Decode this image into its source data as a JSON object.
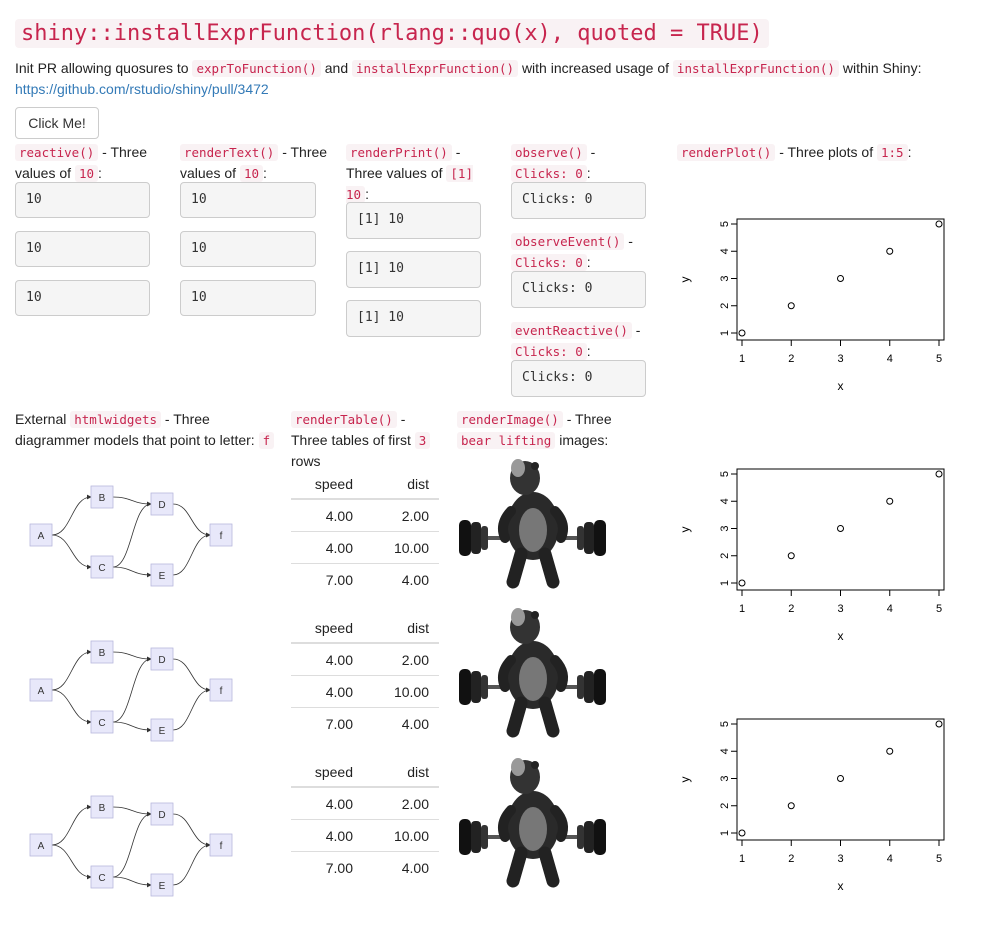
{
  "title": "shiny::installExprFunction(rlang::quo(x), quoted = TRUE)",
  "intro": {
    "t1": "Init PR allowing quosures to",
    "c1": "exprToFunction()",
    "t2": "and",
    "c2": "installExprFunction()",
    "t3": "with increased usage of",
    "c3": "installExprFunction()",
    "t4": "within Shiny:",
    "link": "https://github.com/rstudio/shiny/pull/3472"
  },
  "button": "Click Me!",
  "reactive": {
    "code": "reactive()",
    "text1": " - Three values of ",
    "code2": "10",
    "text2": ":",
    "values": [
      "10",
      "10",
      "10"
    ]
  },
  "renderText": {
    "code": "renderText()",
    "text1": " - Three values of ",
    "code2": "10",
    "text2": ":",
    "values": [
      "10",
      "10",
      "10"
    ]
  },
  "renderPrint": {
    "code": "renderPrint()",
    "text1": " - Three values of ",
    "code2": "[1] 10",
    "text2": ":",
    "values": [
      "[1] 10",
      "[1] 10",
      "[1] 10"
    ]
  },
  "observe": {
    "code": "observe()",
    "text1": " - ",
    "code2": "Clicks: 0",
    "text2": ":",
    "value": "Clicks: 0"
  },
  "observeEvent": {
    "code": "observeEvent()",
    "text1": " - ",
    "code2": "Clicks: 0",
    "text2": ":",
    "value": "Clicks: 0"
  },
  "eventReactive": {
    "code": "eventReactive()",
    "text1": " - ",
    "code2": "Clicks: 0",
    "text2": ":",
    "value": "Clicks: 0"
  },
  "renderPlot": {
    "code": "renderPlot()",
    "text1": " - Three plots of ",
    "code2": "1:5",
    "text2": ":"
  },
  "htmlwidgets": {
    "text0": "External ",
    "code": "htmlwidgets",
    "text1": " - Three diagrammer models that point to letter: ",
    "code2": "f",
    "nodes": [
      "A",
      "B",
      "C",
      "D",
      "E",
      "f"
    ]
  },
  "renderTable": {
    "code": "renderTable()",
    "text1": " - Three tables of first ",
    "code2": "3",
    "text2": " rows",
    "columns": [
      "speed",
      "dist"
    ],
    "rows": [
      [
        "4.00",
        "2.00"
      ],
      [
        "4.00",
        "10.00"
      ],
      [
        "7.00",
        "4.00"
      ]
    ]
  },
  "renderImage": {
    "code": "renderImage()",
    "text1": " - Three ",
    "code2": "bear lifting",
    "text2": " images:"
  },
  "chart_data": [
    {
      "type": "scatter",
      "x": [
        1,
        2,
        3,
        4,
        5
      ],
      "y": [
        1,
        2,
        3,
        4,
        5
      ],
      "xlabel": "x",
      "ylabel": "y",
      "xlim": [
        1,
        5
      ],
      "ylim": [
        1,
        5
      ],
      "xticks": [
        "1",
        "2",
        "3",
        "4",
        "5"
      ],
      "yticks": [
        "1",
        "2",
        "3",
        "4",
        "5"
      ]
    },
    {
      "type": "scatter",
      "x": [
        1,
        2,
        3,
        4,
        5
      ],
      "y": [
        1,
        2,
        3,
        4,
        5
      ],
      "xlabel": "x",
      "ylabel": "y",
      "xlim": [
        1,
        5
      ],
      "ylim": [
        1,
        5
      ],
      "xticks": [
        "1",
        "2",
        "3",
        "4",
        "5"
      ],
      "yticks": [
        "1",
        "2",
        "3",
        "4",
        "5"
      ]
    },
    {
      "type": "scatter",
      "x": [
        1,
        2,
        3,
        4,
        5
      ],
      "y": [
        1,
        2,
        3,
        4,
        5
      ],
      "xlabel": "x",
      "ylabel": "y",
      "xlim": [
        1,
        5
      ],
      "ylim": [
        1,
        5
      ],
      "xticks": [
        "1",
        "2",
        "3",
        "4",
        "5"
      ],
      "yticks": [
        "1",
        "2",
        "3",
        "4",
        "5"
      ]
    }
  ]
}
